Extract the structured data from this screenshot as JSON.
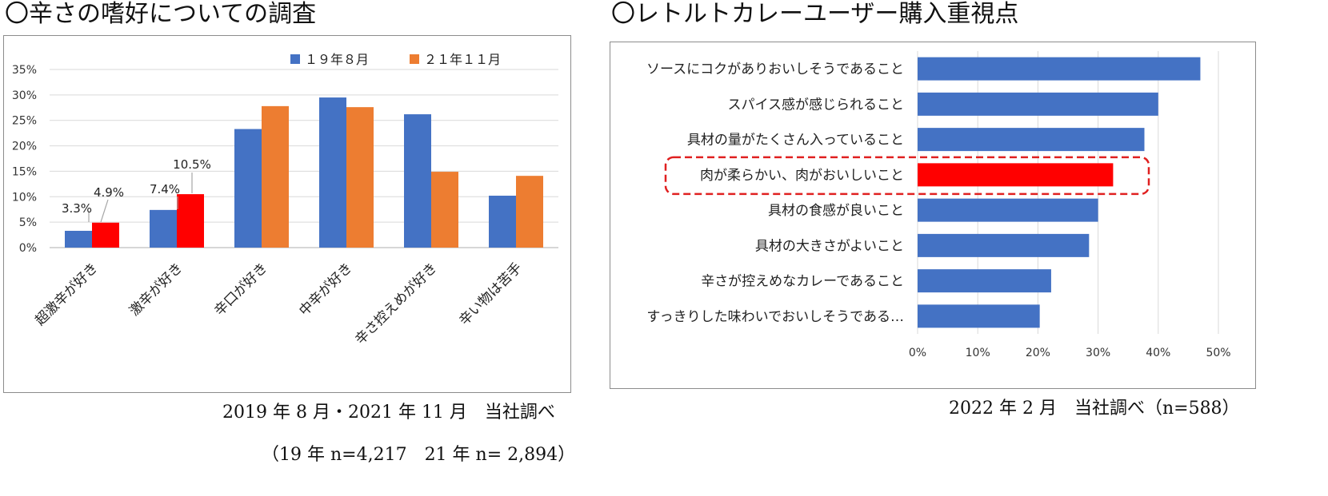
{
  "left": {
    "title": "〇辛さの嗜好についての調査",
    "note1": "2019 年 8 月・2021 年 11 月　当社調べ",
    "note2": "（19 年 n=4,217　21 年 n= 2,894）"
  },
  "right": {
    "title": "〇レトルトカレーユーザー購入重視点",
    "note1": "2022 年 2 月　当社調べ（n=588）"
  },
  "colors": {
    "blue": "#4472c4",
    "orange": "#ed7d31",
    "red": "#ff0000",
    "grid": "#d9d9d9",
    "highlight_border": "#e02020"
  },
  "chart_data": [
    {
      "type": "bar",
      "categories": [
        "超激辛が好き",
        "激辛が好き",
        "辛口が好き",
        "中辛が好き",
        "辛さ控えめが好き",
        "辛い物は苦手"
      ],
      "series": [
        {
          "name": "１９年８月",
          "values": [
            3.3,
            7.4,
            23.3,
            29.5,
            26.2,
            10.2
          ]
        },
        {
          "name": "２１年１１月",
          "values": [
            4.9,
            10.5,
            27.8,
            27.6,
            14.9,
            14.1
          ]
        }
      ],
      "data_labels": [
        {
          "series": 0,
          "index": 0,
          "text": "3.3%"
        },
        {
          "series": 1,
          "index": 0,
          "text": "4.9%"
        },
        {
          "series": 0,
          "index": 1,
          "text": "7.4%"
        },
        {
          "series": 1,
          "index": 1,
          "text": "10.5%"
        }
      ],
      "highlight": {
        "series": 1,
        "indices": [
          0,
          1
        ],
        "color": "#ff0000"
      },
      "ylim": [
        0,
        35
      ],
      "yticks": [
        0,
        5,
        10,
        15,
        20,
        25,
        30,
        35
      ],
      "ytick_labels": [
        "0%",
        "5%",
        "10%",
        "15%",
        "20%",
        "25%",
        "30%",
        "35%"
      ],
      "legend": "top",
      "grid": true
    },
    {
      "type": "bar",
      "orientation": "horizontal",
      "categories": [
        "ソースにコクがありおいしそうであること",
        "スパイス感が感じられること",
        "具材の量がたくさん入っていること",
        "肉が柔らかい、肉がおいしいこと",
        "具材の食感が良いこと",
        "具材の大きさがよいこと",
        "辛さが控えめなカレーであること",
        "すっきりした味わいでおいしそうである…"
      ],
      "values": [
        47,
        40,
        37.7,
        32.5,
        30,
        28.5,
        22.2,
        20.3
      ],
      "highlight": {
        "index": 3,
        "color": "#ff0000",
        "boxed": true
      },
      "xlim": [
        0,
        50
      ],
      "xticks": [
        0,
        10,
        20,
        30,
        40,
        50
      ],
      "xtick_labels": [
        "0%",
        "10%",
        "20%",
        "30%",
        "40%",
        "50%"
      ],
      "grid": true
    }
  ]
}
